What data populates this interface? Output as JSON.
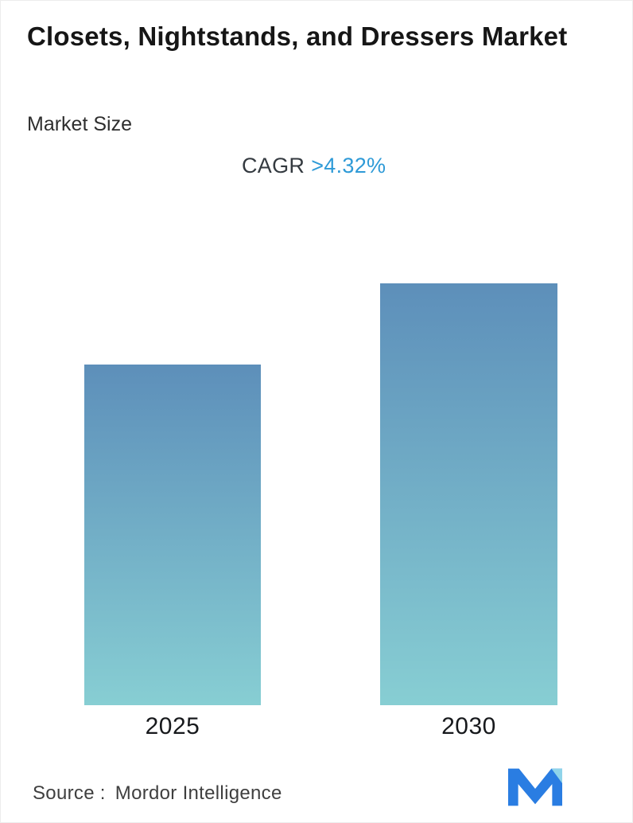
{
  "header": {
    "title": "Closets, Nightstands, and Dressers Market",
    "subtitle": "Market Size",
    "cagr_label": "CAGR",
    "cagr_value": ">4.32%"
  },
  "chart_data": {
    "type": "bar",
    "title": "Closets, Nightstands, and Dressers Market - Market Size",
    "categories": [
      "2025",
      "2030"
    ],
    "values": [
      100,
      123.8
    ],
    "values_note": "Bars carry no printed values; relative index (2025 = 100) estimated from bar heights, consistent with CAGR >4.32% over 2025-2030",
    "xlabel": "",
    "ylabel": "",
    "ylim": [
      0,
      123.8
    ],
    "grid": false,
    "legend": "none",
    "bar_gradient_top": "#5d8fba",
    "bar_gradient_bottom": "#87ced3"
  },
  "footer": {
    "source_label": "Source :",
    "source_value": "Mordor Intelligence",
    "logo": "mordor-intelligence-logo"
  },
  "colors": {
    "accent_blue": "#2e9ad7",
    "text_dark": "#161616",
    "text_gray": "#3f3f3f",
    "bar_top": "#5d8fba",
    "bar_bottom": "#87ced3",
    "logo_blue": "#2a7de2",
    "logo_cyan": "#8fd4ea"
  }
}
